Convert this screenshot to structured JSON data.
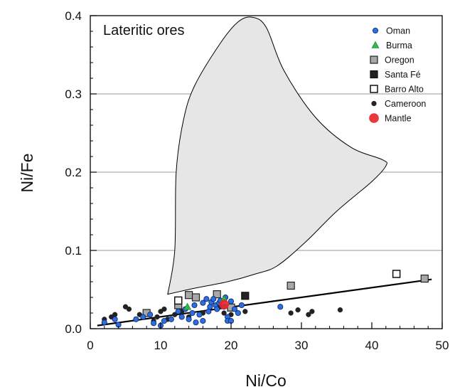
{
  "chart_data": {
    "type": "scatter",
    "xlabel": "Ni/Co",
    "ylabel": "Ni/Fe",
    "xlim": [
      0,
      50
    ],
    "ylim": [
      0,
      0.4
    ],
    "xticks": [
      0,
      10,
      20,
      30,
      40,
      50
    ],
    "xtick_labels": [
      "0",
      "10",
      "20",
      "30",
      "40",
      "50"
    ],
    "yticks": [
      0,
      0.1,
      0.2,
      0.3,
      0.4
    ],
    "ytick_labels": [
      "0.0",
      "0.1",
      "0.2",
      "0.3",
      "0.4"
    ],
    "grid": "horizontal",
    "legend_position": "top-right",
    "annotation": "Lateritic ores",
    "lateritic_ores_field": [
      [
        11.0,
        0.044
      ],
      [
        12.0,
        0.1
      ],
      [
        12.2,
        0.2
      ],
      [
        13.2,
        0.265
      ],
      [
        14.8,
        0.31
      ],
      [
        18.5,
        0.365
      ],
      [
        21.0,
        0.392
      ],
      [
        23.0,
        0.398
      ],
      [
        25.0,
        0.385
      ],
      [
        27.5,
        0.33
      ],
      [
        32.0,
        0.27
      ],
      [
        37.0,
        0.232
      ],
      [
        41.5,
        0.216
      ],
      [
        42.0,
        0.208
      ],
      [
        40.0,
        0.188
      ],
      [
        35.0,
        0.15
      ],
      [
        30.5,
        0.11
      ],
      [
        26.5,
        0.08
      ],
      [
        23.5,
        0.07
      ],
      [
        19.5,
        0.06
      ],
      [
        15.0,
        0.052
      ],
      [
        11.0,
        0.044
      ]
    ],
    "trend_line": {
      "x": [
        1,
        48.5
      ],
      "y": [
        0.004,
        0.063
      ]
    },
    "series": [
      {
        "name": "Oman",
        "marker": "circle-small",
        "color": "#2f6fdc",
        "stroke": "#0a2a7a",
        "points": [
          [
            2.0,
            0.008
          ],
          [
            3.5,
            0.012
          ],
          [
            4.0,
            0.005
          ],
          [
            6.5,
            0.012
          ],
          [
            7.5,
            0.015
          ],
          [
            8.5,
            0.018
          ],
          [
            9.0,
            0.007
          ],
          [
            10.0,
            0.004
          ],
          [
            10.5,
            0.01
          ],
          [
            11.5,
            0.012
          ],
          [
            12.5,
            0.022
          ],
          [
            13.0,
            0.015
          ],
          [
            13.5,
            0.025
          ],
          [
            14.0,
            0.012
          ],
          [
            14.5,
            0.02
          ],
          [
            14.8,
            0.03
          ],
          [
            15.0,
            0.008
          ],
          [
            15.5,
            0.018
          ],
          [
            16.0,
            0.033
          ],
          [
            16.5,
            0.038
          ],
          [
            16.8,
            0.022
          ],
          [
            17.0,
            0.028
          ],
          [
            17.2,
            0.034
          ],
          [
            17.5,
            0.038
          ],
          [
            17.8,
            0.03
          ],
          [
            18.0,
            0.025
          ],
          [
            18.3,
            0.033
          ],
          [
            18.5,
            0.036
          ],
          [
            19.0,
            0.028
          ],
          [
            19.2,
            0.04
          ],
          [
            19.5,
            0.015
          ],
          [
            20.0,
            0.035
          ],
          [
            20.5,
            0.025
          ],
          [
            21.0,
            0.02
          ],
          [
            21.5,
            0.03
          ],
          [
            19.5,
            0.01
          ],
          [
            20.0,
            0.01
          ],
          [
            16.0,
            0.01
          ],
          [
            27.0,
            0.028
          ]
        ]
      },
      {
        "name": "Burma",
        "marker": "triangle",
        "color": "#2db84a",
        "stroke": "#1e7a32",
        "points": [
          [
            13.8,
            0.028
          ],
          [
            19.0,
            0.038
          ]
        ]
      },
      {
        "name": "Oregon",
        "marker": "square",
        "color": "#a8a8a8",
        "stroke": "#222222",
        "points": [
          [
            8.0,
            0.02
          ],
          [
            12.5,
            0.03
          ],
          [
            14.0,
            0.043
          ],
          [
            15.0,
            0.04
          ],
          [
            18.0,
            0.044
          ],
          [
            20.0,
            0.027
          ],
          [
            28.5,
            0.055
          ],
          [
            47.5,
            0.064
          ]
        ]
      },
      {
        "name": "Santa Fé",
        "marker": "square",
        "color": "#222222",
        "stroke": "#111111",
        "points": [
          [
            22.0,
            0.042
          ]
        ]
      },
      {
        "name": "Barro Alto",
        "marker": "square-open",
        "color": "#ffffff",
        "stroke": "#111111",
        "points": [
          [
            12.5,
            0.036
          ],
          [
            43.5,
            0.07
          ]
        ]
      },
      {
        "name": "Cameroon",
        "marker": "dot",
        "color": "#222222",
        "stroke": "#222222",
        "points": [
          [
            2.0,
            0.012
          ],
          [
            3.0,
            0.015
          ],
          [
            3.5,
            0.018
          ],
          [
            5.0,
            0.028
          ],
          [
            5.5,
            0.025
          ],
          [
            7.0,
            0.018
          ],
          [
            7.5,
            0.015
          ],
          [
            8.0,
            0.02
          ],
          [
            9.0,
            0.01
          ],
          [
            9.5,
            0.015
          ],
          [
            10.0,
            0.022
          ],
          [
            10.5,
            0.025
          ],
          [
            11.0,
            0.012
          ],
          [
            12.0,
            0.018
          ],
          [
            13.0,
            0.022
          ],
          [
            14.0,
            0.015
          ],
          [
            16.0,
            0.02
          ],
          [
            18.5,
            0.028
          ],
          [
            19.0,
            0.02
          ],
          [
            20.0,
            0.018
          ],
          [
            22.0,
            0.022
          ],
          [
            28.5,
            0.02
          ],
          [
            29.5,
            0.024
          ],
          [
            31.0,
            0.018
          ],
          [
            31.5,
            0.022
          ],
          [
            35.5,
            0.024
          ]
        ]
      },
      {
        "name": "Mantle",
        "marker": "circle-large",
        "color": "#e8262c",
        "stroke": "#e8262c",
        "points": [
          [
            19.0,
            0.031
          ]
        ]
      }
    ]
  }
}
